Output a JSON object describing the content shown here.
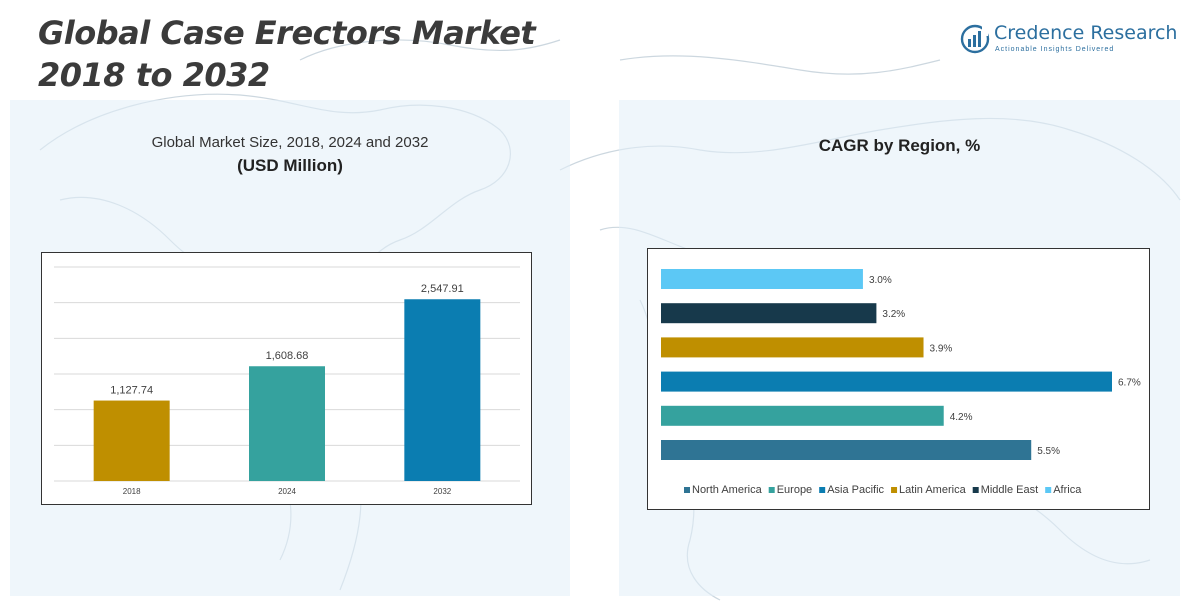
{
  "header": {
    "title_line1": "Global Case Erectors Market",
    "title_line2": "2018 to 2032"
  },
  "logo": {
    "name": "Credence Research",
    "tagline": "Actionable Insights Delivered",
    "icon": "credence-logo-icon"
  },
  "left_panel": {
    "subtitle": "Global Market Size, 2018, 2024 and 2032",
    "unit": "(USD Million)"
  },
  "right_panel": {
    "title": "CAGR by Region, %"
  },
  "colors": {
    "gold": "#bf8f00",
    "teal": "#35a29e",
    "blue": "#0b7db1",
    "steel": "#2f7494",
    "navy": "#17394b",
    "sky": "#5cc8f5",
    "panel_bg": "#e1eef7"
  },
  "chart_data": [
    {
      "type": "bar",
      "title": "Global Market Size, 2018, 2024 and 2032",
      "ylabel": "USD Million",
      "categories": [
        "2018",
        "2024",
        "2032"
      ],
      "values": [
        1127.74,
        1608.68,
        2547.91
      ],
      "labels": [
        "1,127.74",
        "1,608.68",
        "2,547.91"
      ],
      "bar_colors": [
        "#bf8f00",
        "#35a29e",
        "#0b7db1"
      ],
      "ylim": [
        0,
        3000
      ],
      "grid": true
    },
    {
      "type": "bar",
      "orientation": "horizontal",
      "title": "CAGR by Region, %",
      "categories": [
        "Africa",
        "Middle East",
        "Latin America",
        "Asia Pacific",
        "Europe",
        "North America"
      ],
      "values": [
        3.0,
        3.2,
        3.9,
        6.7,
        4.2,
        5.5
      ],
      "labels": [
        "3.0%",
        "3.2%",
        "3.9%",
        "6.7%",
        "4.2%",
        "5.5%"
      ],
      "bar_colors": [
        "#5cc8f5",
        "#17394b",
        "#bf8f00",
        "#0b7db1",
        "#35a29e",
        "#2f7494"
      ],
      "legend": {
        "placement": "bottom",
        "entries": [
          {
            "name": "North America",
            "color": "#2f7494"
          },
          {
            "name": "Europe",
            "color": "#35a29e"
          },
          {
            "name": "Asia Pacific",
            "color": "#0b7db1"
          },
          {
            "name": "Latin America",
            "color": "#bf8f00"
          },
          {
            "name": "Middle East",
            "color": "#17394b"
          },
          {
            "name": "Africa",
            "color": "#5cc8f5"
          }
        ]
      },
      "xlim": [
        0,
        6.7
      ]
    }
  ]
}
